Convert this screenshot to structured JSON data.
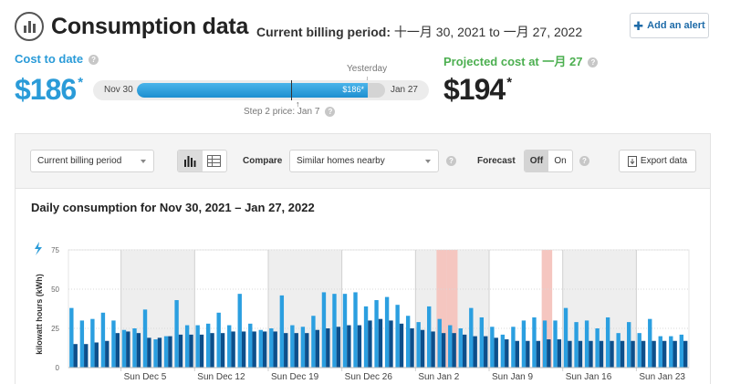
{
  "header": {
    "title": "Consumption data",
    "billing_period_label": "Current billing period:",
    "billing_period_value": "十一月 30, 2021 to 一月 27, 2022",
    "add_alert_label": "Add an alert",
    "logo_icon": "bar-chart-circle-icon"
  },
  "cost_to_date": {
    "label": "Cost to date",
    "value": "$186",
    "footnote_mark": "*"
  },
  "progress": {
    "start_label": "Nov 30",
    "end_label": "Jan 27",
    "fill_text": "$186*",
    "fill_fraction": 0.93,
    "step_fraction": 0.62,
    "yesterday_label": "Yesterday",
    "step_label": "Step 2 price: Jan 7"
  },
  "projected": {
    "label": "Projected cost at 一月 27",
    "value": "$194",
    "footnote_mark": "*"
  },
  "toolbar": {
    "period_select": "Current billing period",
    "compare_label": "Compare",
    "compare_select": "Similar homes nearby",
    "forecast_label": "Forecast",
    "forecast_off": "Off",
    "forecast_on": "On",
    "forecast_selected": "Off",
    "export_label": "Export data",
    "view_icons": [
      "bar-chart-icon",
      "table-icon"
    ]
  },
  "colors": {
    "accent_blue": "#2a9bd8",
    "projected_green": "#4caf50",
    "series_home": "#2b9fe0",
    "series_similar": "#0d4f8b",
    "step_highlight": "#f5c6c0"
  },
  "chart_data": {
    "type": "bar",
    "title": "Daily consumption for Nov 30, 2021 – Jan 27, 2022",
    "ylabel": "kilowatt hours (kWh)",
    "ylim": [
      0,
      75
    ],
    "yticks": [
      0,
      25,
      50,
      75
    ],
    "xticks": [
      "Sun Dec 5",
      "Sun Dec 12",
      "Sun Dec 19",
      "Sun Dec 26",
      "Sun Jan 2",
      "Sun Jan 9",
      "Sun Jan 16",
      "Sun Jan 23"
    ],
    "highlighted_days": [
      35,
      36,
      45
    ],
    "series": [
      {
        "values": [
          38,
          30,
          31,
          35,
          30,
          24,
          25,
          37,
          18,
          20,
          43,
          27,
          27,
          28,
          35,
          27,
          47,
          28,
          24,
          25,
          46,
          27,
          26,
          33,
          48,
          47,
          47,
          48,
          39,
          43,
          45,
          40,
          33,
          29,
          39,
          31,
          27,
          25,
          38,
          32,
          26,
          21,
          26,
          30,
          32,
          30,
          30,
          38,
          29,
          30,
          25,
          32,
          22,
          29,
          22,
          31,
          20,
          20,
          21
        ]
      },
      {
        "values": [
          15,
          15,
          16,
          17,
          22,
          23,
          22,
          19,
          19,
          20,
          21,
          21,
          21,
          22,
          22,
          23,
          23,
          23,
          23,
          23,
          22,
          22,
          22,
          24,
          25,
          26,
          27,
          27,
          30,
          31,
          30,
          28,
          25,
          24,
          23,
          22,
          22,
          21,
          20,
          20,
          19,
          18,
          17,
          17,
          17,
          18,
          18,
          17,
          17,
          17,
          17,
          17,
          17,
          17,
          17,
          17,
          17,
          17,
          17
        ]
      }
    ]
  }
}
